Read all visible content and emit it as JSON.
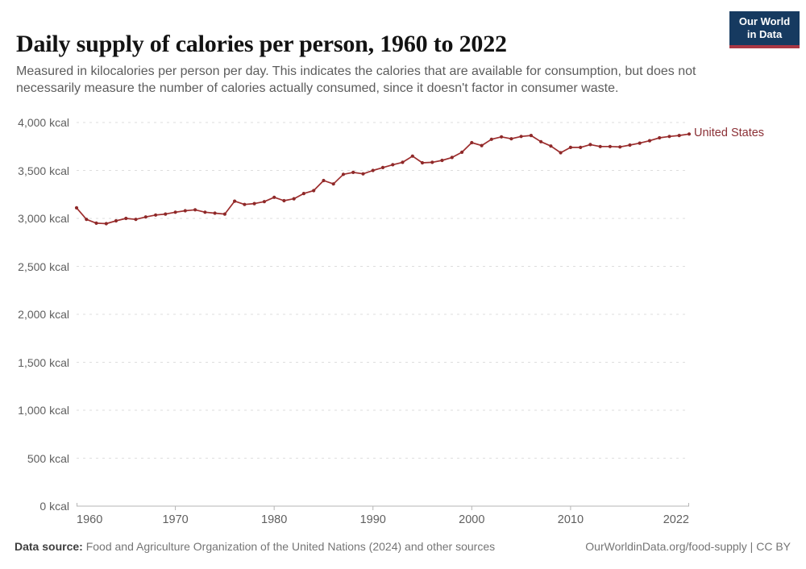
{
  "header": {
    "title": "Daily supply of calories per person, 1960 to 2022",
    "subtitle": "Measured in kilocalories per person per day. This indicates the calories that are available for consumption, but does not necessarily measure the number of calories actually consumed, since it doesn't factor in consumer waste.",
    "logo": {
      "line1": "Our World",
      "line2": "in Data",
      "bg_color": "#163a60",
      "stripe_color": "#a93744"
    }
  },
  "chart_data": {
    "type": "line",
    "title": "Daily supply of calories per person, 1960 to 2022",
    "ylabel": "kcal",
    "xlim": [
      1960,
      2022
    ],
    "ylim": [
      0,
      4000
    ],
    "grid": "horizontal-dashed",
    "legend_position": "end-of-line-label",
    "yticks": [
      0,
      500,
      1000,
      1500,
      2000,
      2500,
      3000,
      3500,
      4000
    ],
    "ytick_labels": [
      "0 kcal",
      "500 kcal",
      "1,000 kcal",
      "1,500 kcal",
      "2,000 kcal",
      "2,500 kcal",
      "3,000 kcal",
      "3,500 kcal",
      "4,000 kcal"
    ],
    "xticks": [
      1960,
      1970,
      1980,
      1990,
      2000,
      2010,
      2022
    ],
    "xtick_labels": [
      "1960",
      "1970",
      "1980",
      "1990",
      "2000",
      "2010",
      "2022"
    ],
    "series": [
      {
        "name": "United States",
        "color": "#9d2e2e",
        "marker_color": "#8e2929",
        "label_color": "#8b3036",
        "years": [
          1960,
          1961,
          1962,
          1963,
          1964,
          1965,
          1966,
          1967,
          1968,
          1969,
          1970,
          1971,
          1972,
          1973,
          1974,
          1975,
          1976,
          1977,
          1978,
          1979,
          1980,
          1981,
          1982,
          1983,
          1984,
          1985,
          1986,
          1987,
          1988,
          1989,
          1990,
          1991,
          1992,
          1993,
          1994,
          1995,
          1996,
          1997,
          1998,
          1999,
          2000,
          2001,
          2002,
          2003,
          2004,
          2005,
          2006,
          2007,
          2008,
          2009,
          2010,
          2011,
          2012,
          2013,
          2014,
          2015,
          2016,
          2017,
          2018,
          2019,
          2020,
          2021,
          2022
        ],
        "values": [
          3110,
          2990,
          2950,
          2945,
          2975,
          3000,
          2990,
          3015,
          3035,
          3045,
          3065,
          3080,
          3090,
          3065,
          3055,
          3045,
          3180,
          3145,
          3155,
          3175,
          3220,
          3185,
          3205,
          3260,
          3290,
          3395,
          3360,
          3460,
          3480,
          3465,
          3500,
          3530,
          3560,
          3585,
          3650,
          3580,
          3585,
          3605,
          3635,
          3690,
          3790,
          3760,
          3825,
          3850,
          3830,
          3855,
          3865,
          3800,
          3755,
          3685,
          3740,
          3740,
          3770,
          3750,
          3750,
          3745,
          3765,
          3785,
          3810,
          3840,
          3855,
          3865,
          3880
        ]
      }
    ],
    "colors": {
      "gridline": "#dedede",
      "axis": "#b5b5b5",
      "tick_label": "#5f5f5f"
    }
  },
  "footer": {
    "datasource_label": "Data source:",
    "datasource_text": " Food and Agriculture Organization of the United Nations (2024) and other sources",
    "link_text": "OurWorldinData.org/food-supply | CC BY"
  }
}
